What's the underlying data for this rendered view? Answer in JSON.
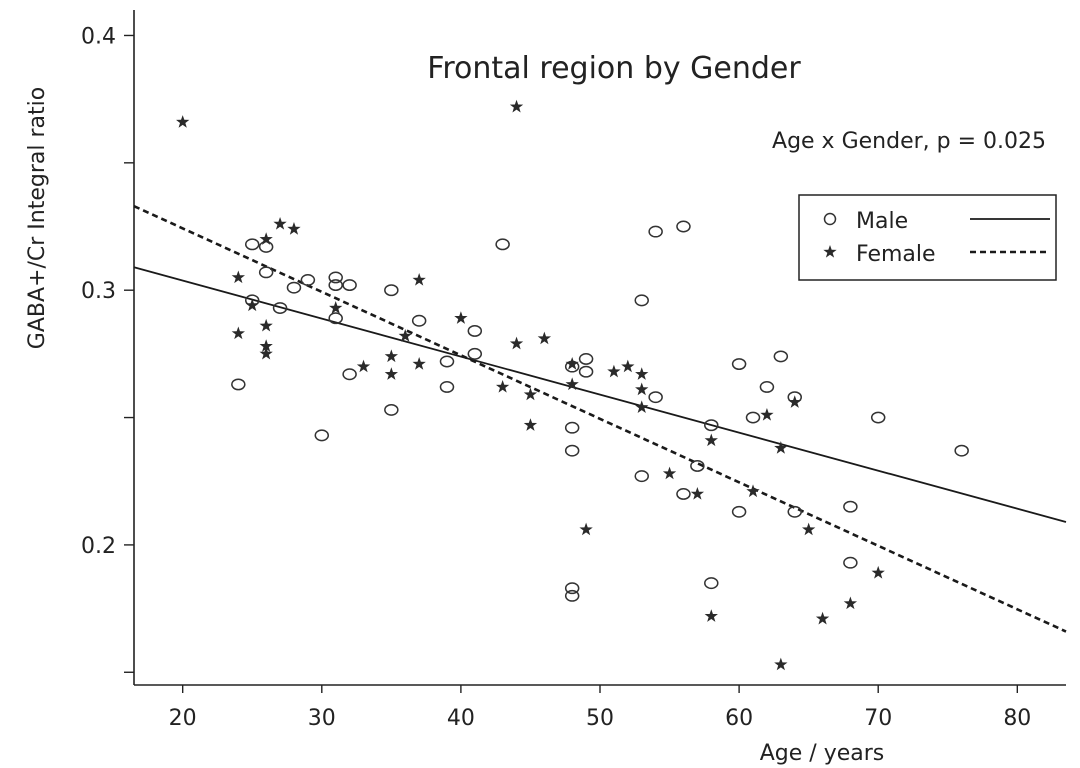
{
  "chart_data": {
    "type": "scatter",
    "title": "Frontal region by Gender",
    "annotation": "Age x Gender, p = 0.025",
    "xlabel": "Age / years",
    "ylabel": "GABA+/Cr Integral ratio",
    "xlim": [
      16.5,
      83.5
    ],
    "ylim": [
      0.145,
      0.41
    ],
    "x_ticks": [
      20,
      30,
      40,
      50,
      60,
      70,
      80
    ],
    "y_ticks": [
      0.2,
      0.3,
      0.4
    ],
    "y_minor_ticks": [
      0.15,
      0.25,
      0.35
    ],
    "legend_position": "top-right",
    "series": [
      {
        "name": "Male",
        "marker": "circle",
        "line_style": "solid",
        "fit": [
          [
            16.5,
            0.309
          ],
          [
            83.5,
            0.209
          ]
        ],
        "points": [
          [
            24,
            0.263
          ],
          [
            25,
            0.318
          ],
          [
            25,
            0.296
          ],
          [
            26,
            0.317
          ],
          [
            26,
            0.307
          ],
          [
            27,
            0.293
          ],
          [
            28,
            0.301
          ],
          [
            29,
            0.304
          ],
          [
            30,
            0.243
          ],
          [
            31,
            0.305
          ],
          [
            31,
            0.302
          ],
          [
            31,
            0.289
          ],
          [
            32,
            0.302
          ],
          [
            32,
            0.267
          ],
          [
            35,
            0.3
          ],
          [
            35,
            0.253
          ],
          [
            37,
            0.288
          ],
          [
            39,
            0.272
          ],
          [
            39,
            0.262
          ],
          [
            41,
            0.284
          ],
          [
            41,
            0.275
          ],
          [
            43,
            0.318
          ],
          [
            48,
            0.27
          ],
          [
            48,
            0.246
          ],
          [
            48,
            0.237
          ],
          [
            48,
            0.183
          ],
          [
            48,
            0.18
          ],
          [
            49,
            0.273
          ],
          [
            49,
            0.268
          ],
          [
            53,
            0.296
          ],
          [
            53,
            0.227
          ],
          [
            54,
            0.258
          ],
          [
            54,
            0.323
          ],
          [
            56,
            0.325
          ],
          [
            56,
            0.22
          ],
          [
            57,
            0.231
          ],
          [
            58,
            0.247
          ],
          [
            58,
            0.185
          ],
          [
            60,
            0.271
          ],
          [
            60,
            0.213
          ],
          [
            61,
            0.25
          ],
          [
            62,
            0.262
          ],
          [
            63,
            0.274
          ],
          [
            64,
            0.258
          ],
          [
            64,
            0.213
          ],
          [
            68,
            0.215
          ],
          [
            68,
            0.193
          ],
          [
            70,
            0.25
          ],
          [
            76,
            0.237
          ]
        ]
      },
      {
        "name": "Female",
        "marker": "star",
        "line_style": "dashed",
        "fit": [
          [
            16.5,
            0.333
          ],
          [
            83.5,
            0.166
          ]
        ],
        "points": [
          [
            20,
            0.366
          ],
          [
            24,
            0.305
          ],
          [
            24,
            0.283
          ],
          [
            25,
            0.294
          ],
          [
            26,
            0.32
          ],
          [
            26,
            0.286
          ],
          [
            26,
            0.278
          ],
          [
            26,
            0.275
          ],
          [
            27,
            0.326
          ],
          [
            28,
            0.324
          ],
          [
            31,
            0.293
          ],
          [
            33,
            0.27
          ],
          [
            35,
            0.274
          ],
          [
            35,
            0.267
          ],
          [
            36,
            0.282
          ],
          [
            37,
            0.304
          ],
          [
            37,
            0.271
          ],
          [
            40,
            0.289
          ],
          [
            43,
            0.262
          ],
          [
            44,
            0.372
          ],
          [
            44,
            0.279
          ],
          [
            45,
            0.259
          ],
          [
            45,
            0.247
          ],
          [
            46,
            0.281
          ],
          [
            48,
            0.271
          ],
          [
            48,
            0.263
          ],
          [
            49,
            0.206
          ],
          [
            51,
            0.268
          ],
          [
            52,
            0.27
          ],
          [
            53,
            0.267
          ],
          [
            53,
            0.261
          ],
          [
            53,
            0.254
          ],
          [
            55,
            0.228
          ],
          [
            57,
            0.22
          ],
          [
            58,
            0.241
          ],
          [
            58,
            0.172
          ],
          [
            61,
            0.221
          ],
          [
            62,
            0.251
          ],
          [
            63,
            0.238
          ],
          [
            63,
            0.153
          ],
          [
            64,
            0.256
          ],
          [
            65,
            0.206
          ],
          [
            66,
            0.171
          ],
          [
            68,
            0.177
          ],
          [
            70,
            0.189
          ]
        ]
      }
    ]
  }
}
